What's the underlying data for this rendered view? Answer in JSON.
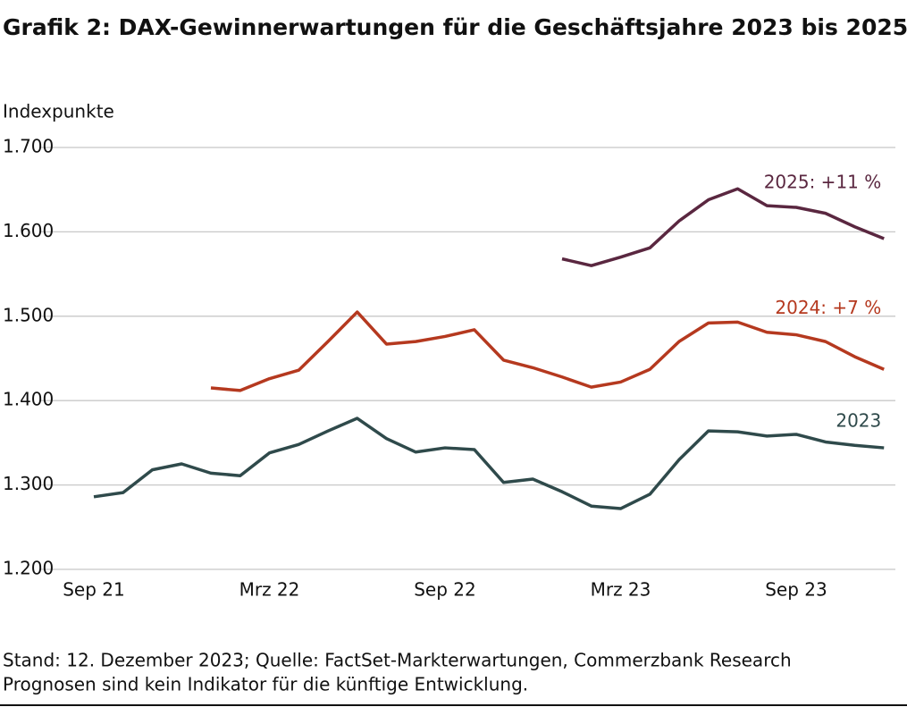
{
  "chart_data": {
    "type": "line",
    "title": "Grafik 2: DAX-Gewinnerwartungen für die Geschäftsjahre 2023 bis 2025",
    "y_label": "Indexpunkte",
    "footnotes": [
      "Stand: 12. Dezember 2023; Quelle: FactSet-Markterwartungen, Commerzbank Research",
      "Prognosen sind kein Indikator für die künftige Entwicklung."
    ],
    "categories": [
      "Sep 21",
      null,
      null,
      null,
      null,
      null,
      "Mrz 22",
      null,
      null,
      null,
      null,
      null,
      "Sep 22",
      null,
      null,
      null,
      null,
      null,
      "Mrz 23",
      null,
      null,
      null,
      null,
      null,
      "Sep 23",
      null,
      null,
      null
    ],
    "series": [
      {
        "name": "2023",
        "color": "#2f4a4b",
        "values": [
          1286,
          1291,
          1318,
          1325,
          1314,
          1311,
          1338,
          1348,
          1364,
          1379,
          1355,
          1339,
          1344,
          1342,
          1303,
          1307,
          1292,
          1275,
          1272,
          1289,
          1330,
          1364,
          1363,
          1358,
          1360,
          1351,
          1347,
          1344
        ]
      },
      {
        "name": "2024: +7 %",
        "color": "#b5391f",
        "values": [
          null,
          null,
          null,
          null,
          1415,
          1412,
          1426,
          1436,
          1470,
          1505,
          1467,
          1470,
          1476,
          1484,
          1448,
          1439,
          1428,
          1416,
          1422,
          1437,
          1470,
          1492,
          1493,
          1481,
          1478,
          1470,
          1452,
          1437
        ]
      },
      {
        "name": "2025: +11 %",
        "color": "#5a2740",
        "values": [
          null,
          null,
          null,
          null,
          null,
          null,
          null,
          null,
          null,
          null,
          null,
          null,
          null,
          null,
          null,
          null,
          1568,
          1560,
          1570,
          1581,
          1613,
          1638,
          1651,
          1631,
          1629,
          1622,
          1606,
          1592
        ]
      }
    ],
    "ylim": [
      1200,
      1700
    ],
    "yticks": [
      {
        "value": 1200,
        "label": "1.200"
      },
      {
        "value": 1300,
        "label": "1.300"
      },
      {
        "value": 1400,
        "label": "1.400"
      },
      {
        "value": 1500,
        "label": "1.500"
      },
      {
        "value": 1600,
        "label": "1.600"
      },
      {
        "value": 1700,
        "label": "1.700"
      }
    ],
    "grid": true
  }
}
